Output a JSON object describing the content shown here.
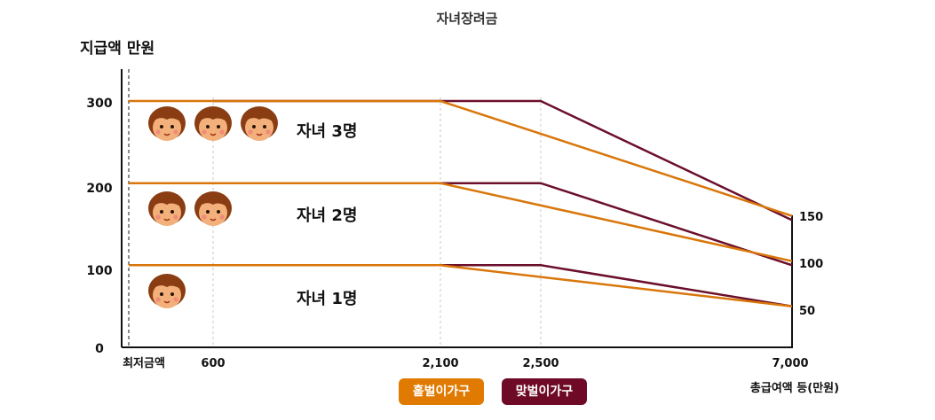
{
  "chart_data": {
    "type": "line",
    "title": "자녀장려금",
    "ylabel": "지급액 만원",
    "xlabel": "총급여액 등(만원)",
    "y_ticks": [
      "0",
      "100",
      "200",
      "300"
    ],
    "x_ticks": [
      "최저금액",
      "600",
      "2,100",
      "2,500",
      "7,000"
    ],
    "right_ticks": [
      "150",
      "100",
      "50"
    ],
    "ylim": [
      0,
      300
    ],
    "series": [
      {
        "name": "홑벌이가구",
        "color": "#d9760a",
        "groups": [
          {
            "label": "자녀 1명",
            "points": [
              [
                "최저금액",
                100
              ],
              [
                "600",
                100
              ],
              [
                "2,100",
                100
              ],
              [
                "7,000",
                50
              ]
            ]
          },
          {
            "label": "자녀 2명",
            "points": [
              [
                "최저금액",
                200
              ],
              [
                "600",
                200
              ],
              [
                "2,100",
                200
              ],
              [
                "7,000",
                105
              ]
            ]
          },
          {
            "label": "자녀 3명",
            "points": [
              [
                "최저금액",
                300
              ],
              [
                "600",
                300
              ],
              [
                "2,100",
                300
              ],
              [
                "7,000",
                160
              ]
            ]
          }
        ]
      },
      {
        "name": "맞벌이가구",
        "color": "#6b0f2b",
        "groups": [
          {
            "label": "자녀 1명",
            "points": [
              [
                "600",
                100
              ],
              [
                "2,500",
                100
              ],
              [
                "7,000",
                50
              ]
            ]
          },
          {
            "label": "자녀 2명",
            "points": [
              [
                "600",
                200
              ],
              [
                "2,500",
                200
              ],
              [
                "7,000",
                100
              ]
            ]
          },
          {
            "label": "자녀 3명",
            "points": [
              [
                "600",
                300
              ],
              [
                "2,500",
                300
              ],
              [
                "7,000",
                155
              ]
            ]
          }
        ]
      }
    ],
    "groups": [
      {
        "label": "자녀 3명",
        "children": 3
      },
      {
        "label": "자녀 2명",
        "children": 2
      },
      {
        "label": "자녀 1명",
        "children": 1
      }
    ]
  },
  "legend": {
    "single": {
      "label": "홑벌이가구",
      "color": "#e07a00"
    },
    "dual": {
      "label": "맞벌이가구",
      "color": "#6e0a26"
    }
  }
}
